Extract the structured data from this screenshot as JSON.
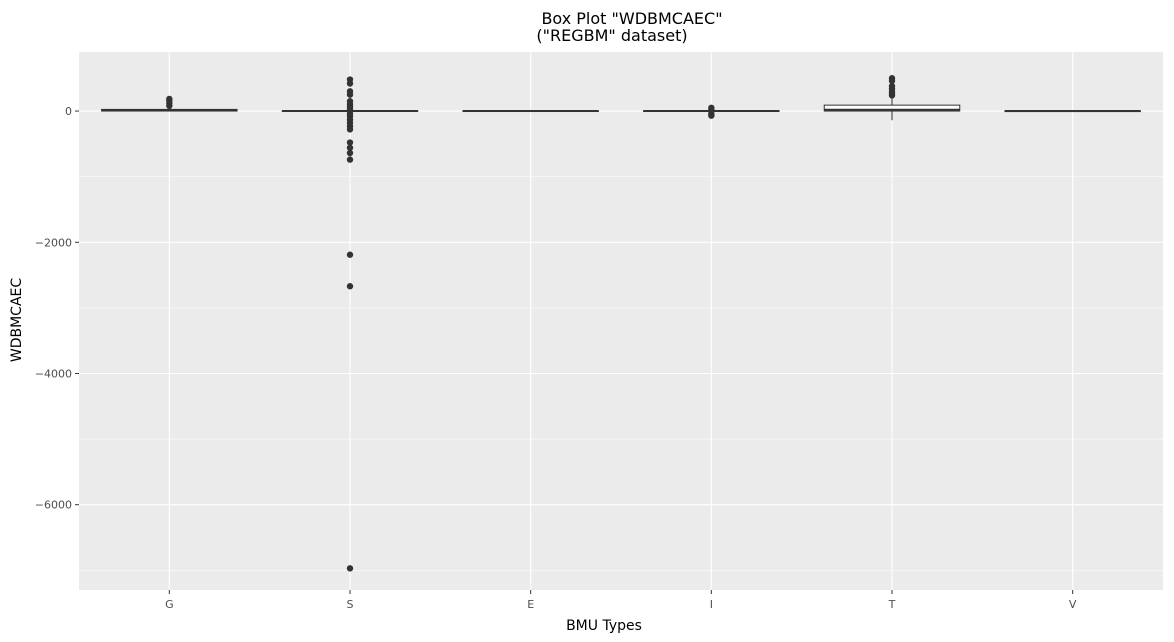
{
  "chart_data": {
    "type": "box",
    "title": "Box Plot \"WDBMCAEC\"",
    "subtitle": "(\"REGBM\" dataset)",
    "xlabel": "BMU Types",
    "ylabel": "WDBMCAEC",
    "categories": [
      "G",
      "S",
      "E",
      "I",
      "T",
      "V"
    ],
    "ylim": [
      -7300,
      900
    ],
    "yticks": [
      0,
      -2000,
      -4000,
      -6000
    ],
    "ytick_labels": [
      "0",
      "−2000",
      "−4000",
      "−6000"
    ],
    "grid": true,
    "boxes": [
      {
        "category": "G",
        "whisker_low": -5,
        "q1": 0,
        "median": 10,
        "q3": 25,
        "whisker_high": 40,
        "outliers": [
          80,
          120,
          160,
          185
        ]
      },
      {
        "category": "S",
        "whisker_low": -10,
        "q1": -5,
        "median": 0,
        "q3": 5,
        "whisker_high": 10,
        "outliers": [
          480,
          420,
          300,
          250,
          150,
          100,
          60,
          20,
          -40,
          -80,
          -130,
          -180,
          -230,
          -280,
          -480,
          -560,
          -640,
          -740,
          -2190,
          -2670,
          -6970
        ]
      },
      {
        "category": "E",
        "whisker_low": -3,
        "q1": -2,
        "median": 0,
        "q3": 2,
        "whisker_high": 3,
        "outliers": []
      },
      {
        "category": "I",
        "whisker_low": -10,
        "q1": -5,
        "median": 0,
        "q3": 5,
        "whisker_high": 10,
        "outliers": [
          50,
          20,
          -40,
          -70
        ]
      },
      {
        "category": "T",
        "whisker_low": -140,
        "q1": 0,
        "median": 20,
        "q3": 90,
        "whisker_high": 210,
        "outliers": [
          500,
          460,
          380,
          340,
          300,
          270,
          240
        ]
      },
      {
        "category": "V",
        "whisker_low": -2,
        "q1": -1,
        "median": 0,
        "q3": 1,
        "whisker_high": 2,
        "outliers": []
      }
    ]
  },
  "colors": {
    "panel_background": "#ebebeb",
    "grid_major": "#ffffff",
    "box_stroke": "#333333",
    "box_fill": "#ffffff",
    "outlier": "#333333"
  }
}
